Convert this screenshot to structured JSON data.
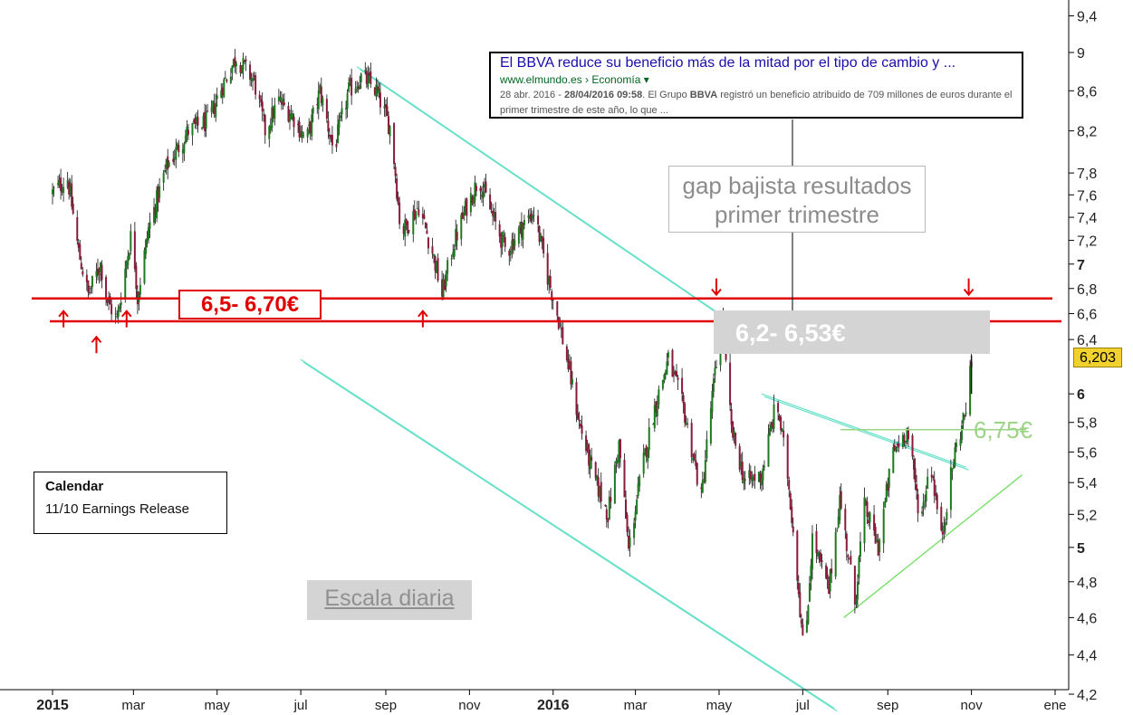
{
  "chart_data": {
    "type": "candlestick",
    "scale": "log",
    "x_axis": {
      "ticks": [
        {
          "label": "2015",
          "date": "2015-01-01",
          "major": true
        },
        {
          "label": "mar",
          "date": "2015-03-01"
        },
        {
          "label": "may",
          "date": "2015-05-01"
        },
        {
          "label": "jul",
          "date": "2015-07-01"
        },
        {
          "label": "sep",
          "date": "2015-09-01"
        },
        {
          "label": "nov",
          "date": "2015-11-01"
        },
        {
          "label": "2016",
          "date": "2016-01-01",
          "major": true
        },
        {
          "label": "mar",
          "date": "2016-03-01"
        },
        {
          "label": "may",
          "date": "2016-05-01"
        },
        {
          "label": "jul",
          "date": "2016-07-01"
        },
        {
          "label": "sep",
          "date": "2016-09-01"
        },
        {
          "label": "nov",
          "date": "2016-11-01"
        },
        {
          "label": "ene",
          "date": "2017-01-01"
        }
      ]
    },
    "y_axis": {
      "ticks": [
        {
          "label": "4,2",
          "value": 4.2
        },
        {
          "label": "4,4",
          "value": 4.4
        },
        {
          "label": "4,6",
          "value": 4.6
        },
        {
          "label": "4,8",
          "value": 4.8
        },
        {
          "label": "5",
          "value": 5,
          "major": true
        },
        {
          "label": "5,2",
          "value": 5.2
        },
        {
          "label": "5,4",
          "value": 5.4
        },
        {
          "label": "5,6",
          "value": 5.6
        },
        {
          "label": "5,8",
          "value": 5.8
        },
        {
          "label": "6",
          "value": 6,
          "major": true
        },
        {
          "label": "6,4",
          "value": 6.4
        },
        {
          "label": "6,6",
          "value": 6.6
        },
        {
          "label": "6,8",
          "value": 6.8
        },
        {
          "label": "7",
          "value": 7,
          "major": true
        },
        {
          "label": "7,2",
          "value": 7.2
        },
        {
          "label": "7,4",
          "value": 7.4
        },
        {
          "label": "7,6",
          "value": 7.6
        },
        {
          "label": "7,8",
          "value": 7.8
        },
        {
          "label": "8,2",
          "value": 8.2
        },
        {
          "label": "8,6",
          "value": 8.6
        },
        {
          "label": "9",
          "value": 9
        },
        {
          "label": "9,4",
          "value": 9.4
        }
      ],
      "range": [
        4.1,
        9.6
      ]
    },
    "price_path": [
      [
        "2015-01-01",
        7.62
      ],
      [
        "2015-01-12",
        7.75
      ],
      [
        "2015-01-20",
        7.1
      ],
      [
        "2015-01-27",
        6.75
      ],
      [
        "2015-02-05",
        7.0
      ],
      [
        "2015-02-10",
        6.7
      ],
      [
        "2015-02-17",
        6.55
      ],
      [
        "2015-02-28",
        7.3
      ],
      [
        "2015-03-04",
        6.72
      ],
      [
        "2015-03-12",
        7.3
      ],
      [
        "2015-03-25",
        7.85
      ],
      [
        "2015-04-10",
        8.2
      ],
      [
        "2015-04-25",
        8.3
      ],
      [
        "2015-05-03",
        8.6
      ],
      [
        "2015-05-15",
        8.95
      ],
      [
        "2015-05-28",
        8.7
      ],
      [
        "2015-06-05",
        8.2
      ],
      [
        "2015-06-15",
        8.5
      ],
      [
        "2015-06-25",
        8.35
      ],
      [
        "2015-07-05",
        8.1
      ],
      [
        "2015-07-15",
        8.6
      ],
      [
        "2015-07-25",
        8.0
      ],
      [
        "2015-08-05",
        8.6
      ],
      [
        "2015-08-15",
        8.75
      ],
      [
        "2015-08-25",
        8.6
      ],
      [
        "2015-09-05",
        8.2
      ],
      [
        "2015-09-12",
        7.25
      ],
      [
        "2015-09-25",
        7.5
      ],
      [
        "2015-10-05",
        7.1
      ],
      [
        "2015-10-12",
        6.75
      ],
      [
        "2015-10-20",
        7.15
      ],
      [
        "2015-10-30",
        7.5
      ],
      [
        "2015-11-08",
        7.75
      ],
      [
        "2015-11-18",
        7.4
      ],
      [
        "2015-11-28",
        7.1
      ],
      [
        "2015-12-08",
        7.3
      ],
      [
        "2015-12-18",
        7.45
      ],
      [
        "2015-12-28",
        6.9
      ],
      [
        "2016-01-05",
        6.55
      ],
      [
        "2016-01-12",
        6.2
      ],
      [
        "2016-01-20",
        5.8
      ],
      [
        "2016-01-30",
        5.45
      ],
      [
        "2016-02-10",
        5.2
      ],
      [
        "2016-02-18",
        5.65
      ],
      [
        "2016-02-25",
        4.98
      ],
      [
        "2016-03-05",
        5.45
      ],
      [
        "2016-03-15",
        5.9
      ],
      [
        "2016-03-25",
        6.25
      ],
      [
        "2016-04-05",
        5.9
      ],
      [
        "2016-04-18",
        5.3
      ],
      [
        "2016-04-25",
        5.9
      ],
      [
        "2016-05-03",
        6.53
      ],
      [
        "2016-05-10",
        5.75
      ],
      [
        "2016-05-20",
        5.4
      ],
      [
        "2016-06-01",
        5.45
      ],
      [
        "2016-06-12",
        5.95
      ],
      [
        "2016-06-20",
        5.45
      ],
      [
        "2016-06-27",
        4.85
      ],
      [
        "2016-07-02",
        4.36
      ],
      [
        "2016-07-08",
        5.05
      ],
      [
        "2016-07-20",
        4.75
      ],
      [
        "2016-07-28",
        5.3
      ],
      [
        "2016-08-08",
        4.68
      ],
      [
        "2016-08-15",
        5.25
      ],
      [
        "2016-08-25",
        5.0
      ],
      [
        "2016-09-05",
        5.6
      ],
      [
        "2016-09-15",
        5.75
      ],
      [
        "2016-09-25",
        5.15
      ],
      [
        "2016-10-02",
        5.55
      ],
      [
        "2016-10-10",
        5.05
      ],
      [
        "2016-10-20",
        5.6
      ],
      [
        "2016-10-27",
        5.85
      ],
      [
        "2016-11-01",
        6.2
      ]
    ],
    "last_price": {
      "label": "6,203",
      "value": 6.203
    },
    "horizontal_lines": [
      {
        "value": 6.72,
        "color": "#e00000"
      },
      {
        "value": 6.54,
        "color": "#e00000"
      },
      {
        "value": 5.75,
        "color": "#9ed488"
      }
    ],
    "trendlines": [
      {
        "color": "#66e0c8",
        "double": true,
        "points": [
          [
            "2015-08-11",
            8.85
          ],
          [
            "2016-05-01",
            6.6
          ]
        ]
      },
      {
        "color": "#66e0c8",
        "double": true,
        "points": [
          [
            "2015-07-01",
            6.25
          ],
          [
            "2016-07-24",
            4.13
          ]
        ]
      },
      {
        "color": "#66e0c8",
        "double": true,
        "points": [
          [
            "2016-06-01",
            6.0
          ],
          [
            "2016-10-28",
            5.5
          ]
        ]
      },
      {
        "color": "#66dd55",
        "double": false,
        "points": [
          [
            "2016-07-31",
            4.6
          ],
          [
            "2016-12-08",
            5.45
          ]
        ]
      }
    ],
    "arrows": [
      {
        "date": "2015-01-09",
        "value": 6.62,
        "direction": "up"
      },
      {
        "date": "2015-02-02",
        "value": 6.42,
        "direction": "up"
      },
      {
        "date": "2015-02-24",
        "value": 6.62,
        "direction": "up"
      },
      {
        "date": "2015-09-28",
        "value": 6.62,
        "direction": "up"
      },
      {
        "date": "2016-04-29",
        "value": 6.75,
        "direction": "down"
      },
      {
        "date": "2016-10-30",
        "value": 6.75,
        "direction": "down"
      }
    ],
    "resistance_zone": {
      "from": 6.2,
      "to": 6.53,
      "label": "6,2- 6,53€"
    },
    "support_label": "6,5- 6,70€",
    "neckline_label": "6,75€"
  },
  "annotations": {
    "news": {
      "title": "El BBVA reduce su beneficio más de la mitad por el tipo de cambio y ...",
      "url": "www.elmundo.es › Economía ▾",
      "date_prefix": "28 abr. 2016 - ",
      "date_bold": "28/04/2016 09:58",
      "snippet_1": ". El Grupo ",
      "snippet_bold": "BBVA",
      "snippet_2": " registró un beneficio atribuido de 709 millones de euros durante el primer trimestre de este año, lo que ..."
    },
    "gap": {
      "line1": "gap bajista resultados",
      "line2": "primer trimestre"
    },
    "calendar": {
      "title": "Calendar",
      "entry": "11/10  Earnings Release"
    },
    "scale": "Escala diaria"
  },
  "colors": {
    "up": "#1e7a1e",
    "down": "#8a1a3a",
    "support": "#e00000",
    "channel": "#66e0c8",
    "trend": "#66dd55",
    "tag": "#f1d12e"
  }
}
